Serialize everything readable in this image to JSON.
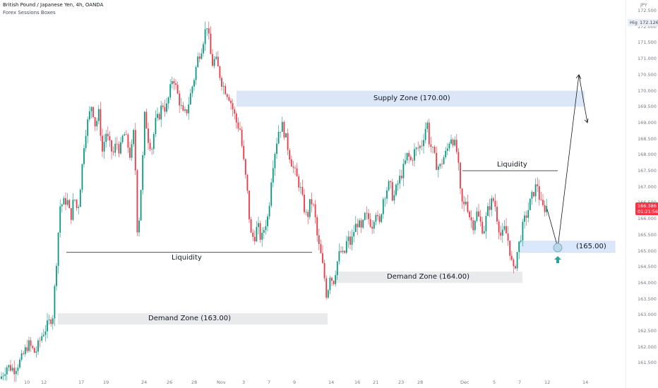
{
  "header": {
    "symbol": "British Pound / Japanese Yen, 4h, OANDA",
    "indicator": "Forex Sessions Boxes"
  },
  "price_axis": {
    "currency": "JPY",
    "ticks": [
      "172.500",
      "172.000",
      "171.500",
      "171.000",
      "170.500",
      "170.000",
      "169.500",
      "169.000",
      "168.500",
      "168.000",
      "167.500",
      "167.000",
      "166.500",
      "166.000",
      "165.500",
      "165.000",
      "164.500",
      "164.000",
      "163.500",
      "163.000",
      "162.500",
      "162.000",
      "161.500"
    ],
    "high_label": "High",
    "high_value": "172.126",
    "current_price": "166.386",
    "countdown": "01:21:56"
  },
  "time_axis": {
    "ticks": [
      "10",
      "12",
      "17",
      "19",
      "24",
      "26",
      "28",
      "Nov",
      "3",
      "7",
      "9",
      "14",
      "16",
      "21",
      "23",
      "28",
      "Dec",
      "5",
      "7",
      "12",
      "14"
    ]
  },
  "annotations": {
    "supply_zone": "Supply Zone (170.00)",
    "demand_zone_163": "Demand Zone (163.00)",
    "demand_zone_164": "Demand Zone (164.00)",
    "zone_165": "(165.00)",
    "liquidity_left": "Liquidity",
    "liquidity_right": "Liquidity"
  },
  "colors": {
    "up": "#089981",
    "down": "#f23645",
    "zone_supply": "#dbe6f7",
    "zone_demand": "#e9eaec",
    "zone_165": "#dbe8fb",
    "arrow_up": "#26a69a",
    "line": "#131722",
    "grid_text": "#787b86"
  },
  "chart_data": {
    "type": "candlestick",
    "ylim": [
      161.2,
      172.7
    ],
    "path": [
      [
        0,
        161.0
      ],
      [
        10,
        161.4
      ],
      [
        20,
        161.3
      ],
      [
        30,
        161.6
      ],
      [
        40,
        162.1
      ],
      [
        50,
        161.8
      ],
      [
        60,
        162.4
      ],
      [
        68,
        162.7
      ],
      [
        75,
        163.0
      ],
      [
        85,
        166.4
      ],
      [
        95,
        166.6
      ],
      [
        100,
        166.0
      ],
      [
        105,
        166.7
      ],
      [
        110,
        166.2
      ],
      [
        115,
        167.3
      ],
      [
        120,
        168.6
      ],
      [
        125,
        169.1
      ],
      [
        130,
        169.6
      ],
      [
        135,
        168.9
      ],
      [
        140,
        169.3
      ],
      [
        145,
        168.1
      ],
      [
        150,
        168.7
      ],
      [
        155,
        168.3
      ],
      [
        160,
        168.0
      ],
      [
        165,
        168.4
      ],
      [
        170,
        168.1
      ],
      [
        175,
        168.7
      ],
      [
        180,
        168.4
      ],
      [
        185,
        167.9
      ],
      [
        190,
        168.8
      ],
      [
        195,
        165.3
      ],
      [
        198,
        166.4
      ],
      [
        202,
        167.8
      ],
      [
        205,
        169.3
      ],
      [
        210,
        168.5
      ],
      [
        215,
        168.2
      ],
      [
        220,
        169.0
      ],
      [
        225,
        169.2
      ],
      [
        230,
        169.6
      ],
      [
        235,
        169.4
      ],
      [
        240,
        169.9
      ],
      [
        245,
        170.5
      ],
      [
        250,
        170.0
      ],
      [
        255,
        169.6
      ],
      [
        260,
        169.2
      ],
      [
        265,
        169.4
      ],
      [
        270,
        169.9
      ],
      [
        275,
        170.4
      ],
      [
        280,
        171.0
      ],
      [
        285,
        171.3
      ],
      [
        290,
        171.8
      ],
      [
        293,
        172.1
      ],
      [
        297,
        171.4
      ],
      [
        300,
        170.8
      ],
      [
        305,
        171.0
      ],
      [
        310,
        170.6
      ],
      [
        315,
        170.2
      ],
      [
        320,
        170.0
      ],
      [
        325,
        169.8
      ],
      [
        330,
        169.4
      ],
      [
        335,
        169.0
      ],
      [
        340,
        168.8
      ],
      [
        345,
        167.8
      ],
      [
        350,
        166.9
      ],
      [
        355,
        165.5
      ],
      [
        360,
        165.4
      ],
      [
        365,
        165.8
      ],
      [
        370,
        165.3
      ],
      [
        375,
        165.8
      ],
      [
        380,
        166.1
      ],
      [
        385,
        167.5
      ],
      [
        390,
        168.2
      ],
      [
        395,
        168.8
      ],
      [
        400,
        168.9
      ],
      [
        405,
        168.5
      ],
      [
        410,
        168.0
      ],
      [
        415,
        167.6
      ],
      [
        420,
        167.3
      ],
      [
        425,
        167.0
      ],
      [
        430,
        166.4
      ],
      [
        435,
        166.0
      ],
      [
        440,
        166.6
      ],
      [
        445,
        166.3
      ],
      [
        450,
        165.3
      ],
      [
        455,
        164.8
      ],
      [
        460,
        164.1
      ],
      [
        463,
        163.5
      ],
      [
        467,
        164.3
      ],
      [
        472,
        164.0
      ],
      [
        477,
        164.6
      ],
      [
        482,
        165.0
      ],
      [
        487,
        164.8
      ],
      [
        492,
        165.4
      ],
      [
        497,
        165.2
      ],
      [
        502,
        165.7
      ],
      [
        507,
        165.9
      ],
      [
        512,
        165.6
      ],
      [
        517,
        166.1
      ],
      [
        522,
        166.0
      ],
      [
        527,
        165.8
      ],
      [
        532,
        166.3
      ],
      [
        537,
        165.7
      ],
      [
        542,
        166.6
      ],
      [
        547,
        166.9
      ],
      [
        552,
        167.1
      ],
      [
        557,
        166.6
      ],
      [
        562,
        167.0
      ],
      [
        567,
        167.3
      ],
      [
        572,
        167.6
      ],
      [
        577,
        168.0
      ],
      [
        582,
        167.8
      ],
      [
        587,
        168.1
      ],
      [
        592,
        168.2
      ],
      [
        597,
        168.3
      ],
      [
        602,
        168.8
      ],
      [
        605,
        169.0
      ],
      [
        608,
        168.4
      ],
      [
        613,
        168.1
      ],
      [
        618,
        167.7
      ],
      [
        623,
        167.6
      ],
      [
        628,
        167.9
      ],
      [
        633,
        168.1
      ],
      [
        638,
        168.6
      ],
      [
        643,
        168.4
      ],
      [
        648,
        168.0
      ],
      [
        652,
        166.8
      ],
      [
        656,
        166.3
      ],
      [
        660,
        166.6
      ],
      [
        665,
        166.1
      ],
      [
        670,
        165.8
      ],
      [
        675,
        166.2
      ],
      [
        680,
        165.9
      ],
      [
        685,
        165.6
      ],
      [
        690,
        166.2
      ],
      [
        695,
        166.5
      ],
      [
        700,
        166.6
      ],
      [
        705,
        165.9
      ],
      [
        710,
        165.4
      ],
      [
        715,
        165.7
      ],
      [
        720,
        165.3
      ],
      [
        725,
        164.6
      ],
      [
        728,
        164.3
      ],
      [
        732,
        164.9
      ],
      [
        737,
        165.4
      ],
      [
        742,
        165.9
      ],
      [
        747,
        166.2
      ],
      [
        752,
        166.6
      ],
      [
        757,
        166.9
      ],
      [
        761,
        167.1
      ],
      [
        765,
        166.5
      ],
      [
        770,
        166.3
      ],
      [
        775,
        166.4
      ]
    ],
    "supply_zone": [
      169.5,
      170.0
    ],
    "demand_zone_163": [
      162.7,
      163.05
    ],
    "demand_zone_164": [
      164.0,
      164.35
    ],
    "zone_165": [
      164.95,
      165.3
    ],
    "liquidity_levels": [
      164.95,
      167.5
    ]
  }
}
